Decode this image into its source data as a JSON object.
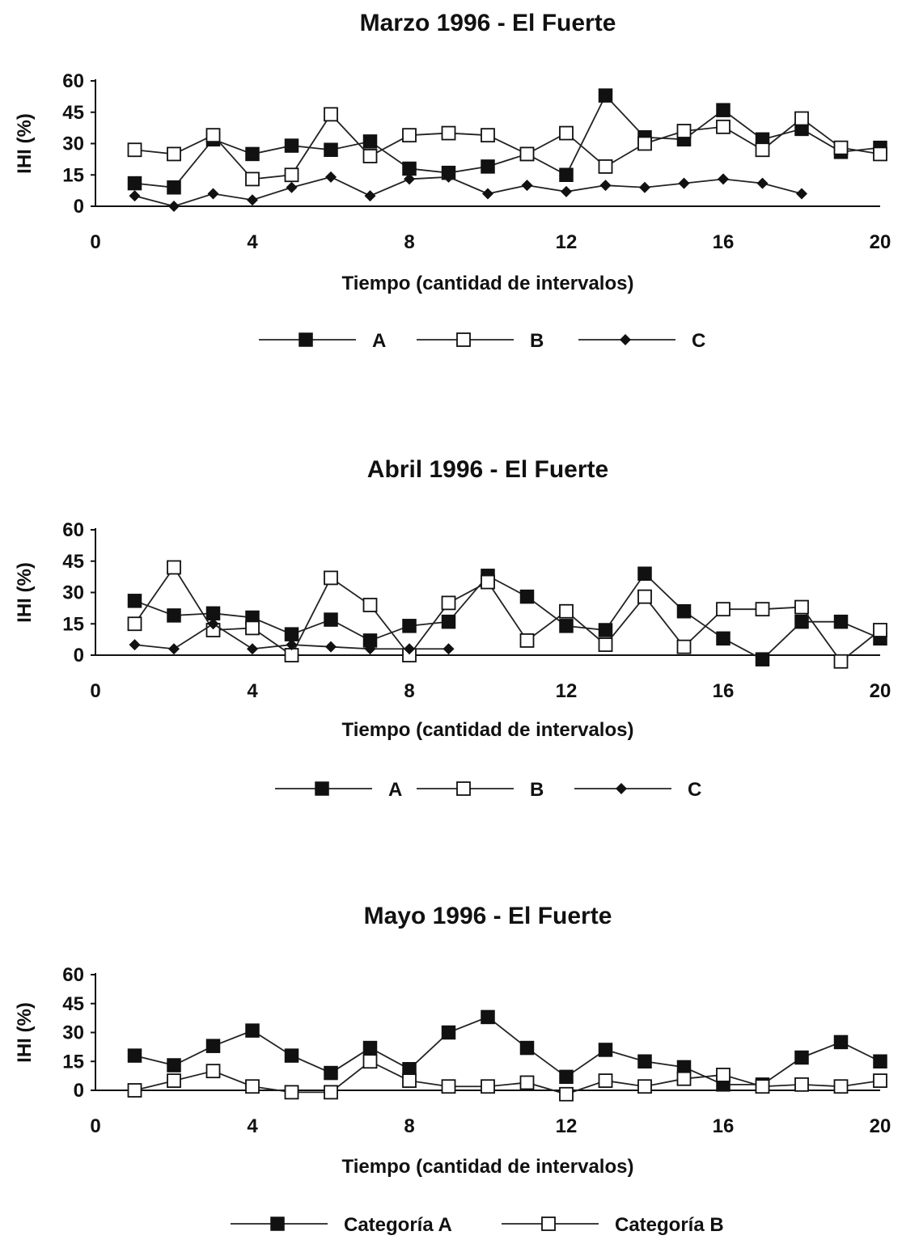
{
  "chart_data": [
    {
      "type": "line",
      "title": "Marzo 1996 - El Fuerte",
      "xlabel": "Tiempo (cantidad de intervalos)",
      "ylabel": "IHI (%)",
      "xlim": [
        0,
        20
      ],
      "ylim": [
        0,
        60
      ],
      "xticks": [
        "0",
        "4",
        "8",
        "12",
        "16",
        "20"
      ],
      "yticks": [
        "0",
        "15",
        "30",
        "45",
        "60"
      ],
      "legend_position": "bottom",
      "series": [
        {
          "name": "A",
          "marker": "filled-square",
          "x": [
            1,
            2,
            3,
            4,
            5,
            6,
            7,
            8,
            9,
            10,
            11,
            12,
            13,
            14,
            15,
            16,
            17,
            18,
            19,
            20
          ],
          "y": [
            11,
            9,
            32,
            25,
            29,
            27,
            31,
            18,
            16,
            19,
            25,
            15,
            53,
            33,
            32,
            46,
            32,
            37,
            26,
            28
          ]
        },
        {
          "name": "B",
          "marker": "open-square",
          "x": [
            1,
            2,
            3,
            4,
            5,
            6,
            7,
            8,
            9,
            10,
            11,
            12,
            13,
            14,
            15,
            16,
            17,
            18,
            19,
            20
          ],
          "y": [
            27,
            25,
            34,
            13,
            15,
            44,
            24,
            34,
            35,
            34,
            25,
            35,
            19,
            30,
            36,
            38,
            27,
            42,
            28,
            25
          ]
        },
        {
          "name": "C",
          "marker": "diamond",
          "x": [
            1,
            2,
            3,
            4,
            5,
            6,
            7,
            8,
            9,
            10,
            11,
            12,
            13,
            14,
            15,
            16,
            17,
            18
          ],
          "y": [
            5,
            0,
            6,
            3,
            9,
            14,
            5,
            13,
            14,
            6,
            10,
            7,
            10,
            9,
            11,
            13,
            11,
            6
          ]
        }
      ]
    },
    {
      "type": "line",
      "title": "Abril 1996 - El Fuerte",
      "xlabel": "Tiempo (cantidad de intervalos)",
      "ylabel": "IHI (%)",
      "xlim": [
        0,
        20
      ],
      "ylim": [
        0,
        60
      ],
      "xticks": [
        "0",
        "4",
        "8",
        "12",
        "16",
        "20"
      ],
      "yticks": [
        "0",
        "15",
        "30",
        "45",
        "60"
      ],
      "legend_position": "bottom",
      "series": [
        {
          "name": "A",
          "marker": "filled-square",
          "x": [
            1,
            2,
            3,
            4,
            5,
            6,
            7,
            8,
            9,
            10,
            11,
            12,
            13,
            14,
            15,
            16,
            17,
            18,
            19,
            20
          ],
          "y": [
            26,
            19,
            20,
            18,
            10,
            17,
            7,
            14,
            16,
            38,
            28,
            14,
            12,
            39,
            21,
            8,
            -2,
            16,
            16,
            8
          ]
        },
        {
          "name": "B",
          "marker": "open-square",
          "x": [
            1,
            2,
            3,
            4,
            5,
            6,
            7,
            8,
            9,
            10,
            11,
            12,
            13,
            14,
            15,
            16,
            17,
            18,
            19,
            20
          ],
          "y": [
            15,
            42,
            12,
            13,
            0,
            37,
            24,
            0,
            25,
            35,
            7,
            21,
            5,
            28,
            4,
            22,
            22,
            23,
            -3,
            12
          ]
        },
        {
          "name": "C",
          "marker": "diamond",
          "x": [
            1,
            2,
            3,
            4,
            5,
            6,
            7,
            8,
            9
          ],
          "y": [
            5,
            3,
            15,
            3,
            5,
            4,
            3,
            3,
            3
          ]
        }
      ]
    },
    {
      "type": "line",
      "title": "Mayo 1996 - El Fuerte",
      "xlabel": "Tiempo (cantidad de intervalos)",
      "ylabel": "IHI (%)",
      "xlim": [
        0,
        20
      ],
      "ylim": [
        0,
        60
      ],
      "xticks": [
        "0",
        "4",
        "8",
        "12",
        "16",
        "20"
      ],
      "yticks": [
        "0",
        "15",
        "30",
        "45",
        "60"
      ],
      "legend_position": "bottom",
      "series": [
        {
          "name": "Categoría A",
          "marker": "filled-square",
          "x": [
            1,
            2,
            3,
            4,
            5,
            6,
            7,
            8,
            9,
            10,
            11,
            12,
            13,
            14,
            15,
            16,
            17,
            18,
            19,
            20
          ],
          "y": [
            18,
            13,
            23,
            31,
            18,
            9,
            22,
            11,
            30,
            38,
            22,
            7,
            21,
            15,
            12,
            3,
            3,
            17,
            25,
            15
          ]
        },
        {
          "name": "Categoría B",
          "marker": "open-square",
          "x": [
            1,
            2,
            3,
            4,
            5,
            6,
            7,
            8,
            9,
            10,
            11,
            12,
            13,
            14,
            15,
            16,
            17,
            18,
            19,
            20
          ],
          "y": [
            0,
            5,
            10,
            2,
            -1,
            -1,
            15,
            5,
            2,
            2,
            4,
            -2,
            5,
            2,
            6,
            8,
            2,
            3,
            2,
            5
          ]
        }
      ]
    }
  ]
}
